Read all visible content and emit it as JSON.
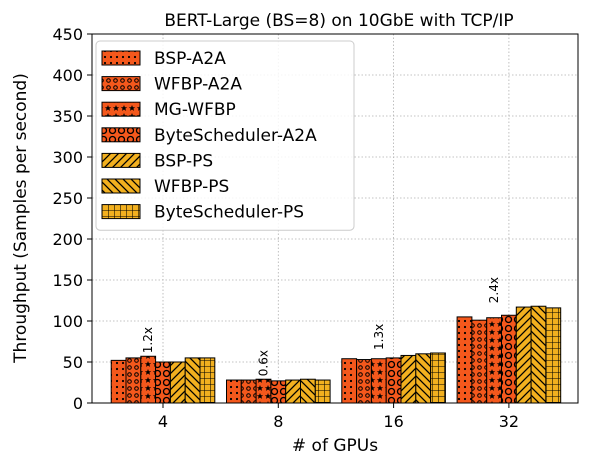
{
  "chart_data": {
    "type": "bar",
    "title": "BERT-Large (BS=8) on 10GbE with TCP/IP",
    "xlabel": "# of GPUs",
    "ylabel": "Throughput (Samples per second)",
    "categories": [
      "4",
      "8",
      "16",
      "32"
    ],
    "ylim": [
      0,
      450
    ],
    "yticks": [
      0,
      50,
      100,
      150,
      200,
      250,
      300,
      350,
      400,
      450
    ],
    "grid": true,
    "legend_position": "top-left",
    "series": [
      {
        "name": "BSP-A2A",
        "color": "#f4581c",
        "hatch": "dots",
        "values": [
          52,
          28,
          54,
          105
        ]
      },
      {
        "name": "WFBP-A2A",
        "color": "#f4581c",
        "hatch": "circles",
        "values": [
          55,
          28,
          53,
          101
        ]
      },
      {
        "name": "MG-WFBP",
        "color": "#f4581c",
        "hatch": "stars",
        "values": [
          57,
          29,
          54,
          104
        ]
      },
      {
        "name": "ByteScheduler-A2A",
        "color": "#f4581c",
        "hatch": "rings",
        "values": [
          50,
          27,
          55,
          107
        ]
      },
      {
        "name": "BSP-PS",
        "color": "#f2b01f",
        "hatch": "forward-slash",
        "values": [
          50,
          28,
          58,
          117
        ]
      },
      {
        "name": "WFBP-PS",
        "color": "#f2b01f",
        "hatch": "back-slash",
        "values": [
          55,
          29,
          60,
          118
        ]
      },
      {
        "name": "ByteScheduler-PS",
        "color": "#f2b01f",
        "hatch": "grid",
        "values": [
          55,
          28,
          61,
          116
        ]
      }
    ],
    "annotations": [
      {
        "category": "4",
        "text": "1.2x"
      },
      {
        "category": "8",
        "text": "0.6x"
      },
      {
        "category": "16",
        "text": "1.3x"
      },
      {
        "category": "32",
        "text": "2.4x"
      }
    ]
  }
}
